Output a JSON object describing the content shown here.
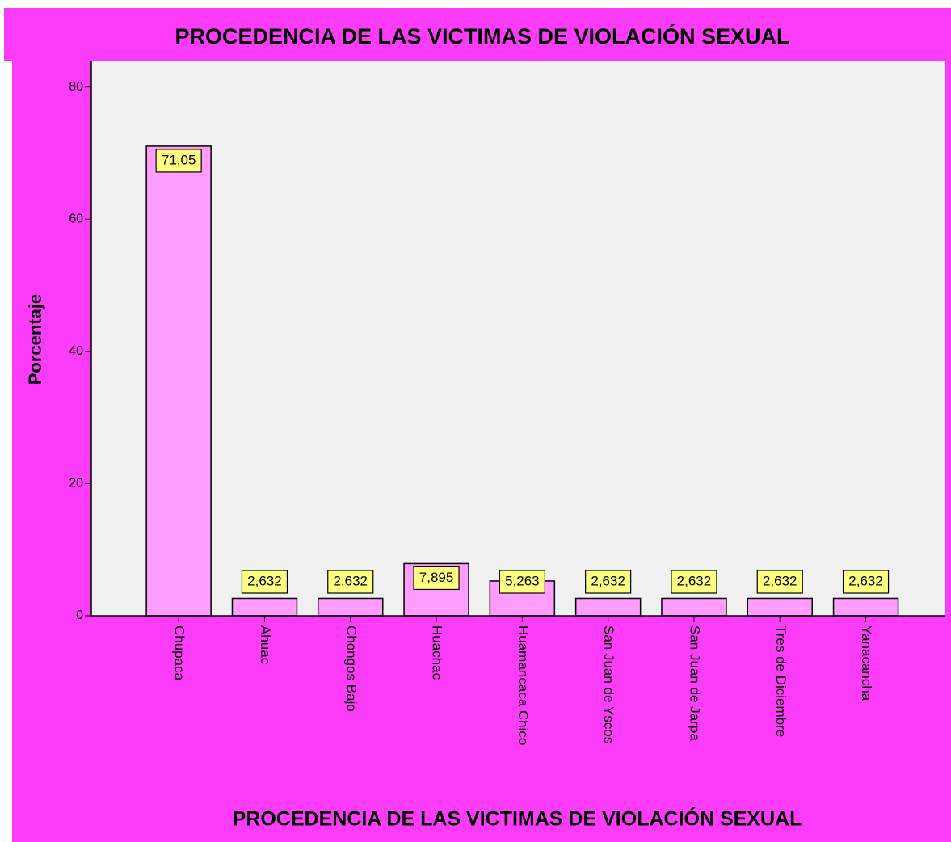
{
  "chart_data": {
    "type": "bar",
    "title": "PROCEDENCIA DE LAS VICTIMAS DE VIOLACIÓN SEXUAL",
    "x_label": "PROCEDENCIA DE LAS VICTIMAS DE VIOLACIÓN SEXUAL",
    "y_label": "Porcentaje",
    "categories": [
      "Chupaca",
      "Ahuac",
      "Chongos Bajo",
      "Huachac",
      "Huamancaca Chico",
      "San Juan de Yscos",
      "San Juan de Jarpa",
      "Tres de Diciembre",
      "Yanacancha"
    ],
    "values": [
      71.05,
      2.632,
      2.632,
      7.895,
      5.263,
      2.632,
      2.632,
      2.632,
      2.632
    ],
    "value_labels": [
      "71,05",
      "2,632",
      "2,632",
      "7,895",
      "5,263",
      "2,632",
      "2,632",
      "2,632",
      "2,632"
    ],
    "color": "#ff9cff",
    "ylim": [
      0,
      84
    ],
    "yticks": [
      0,
      20,
      40,
      60,
      80
    ],
    "grid": false
  }
}
